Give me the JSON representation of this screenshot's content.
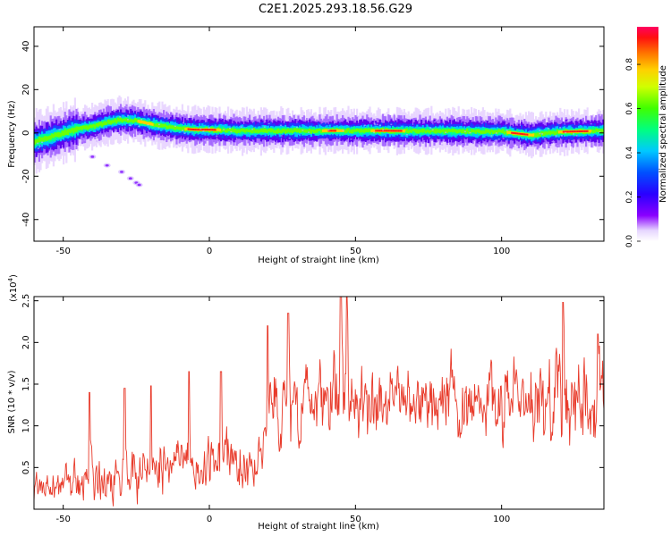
{
  "title": "C2E1.2025.293.18.56.G29",
  "colors": {
    "snr_line": "#e83a2a",
    "axis": "#000000",
    "background": "#ffffff"
  },
  "chart_data": [
    {
      "type": "heatmap",
      "title": "C2E1.2025.293.18.56.G29",
      "xlabel": "Height of straight line (km)",
      "ylabel": "Frequency (Hz)",
      "xlim": [
        -60,
        135
      ],
      "ylim": [
        -50,
        49
      ],
      "xticks": [
        -50,
        0,
        50,
        100
      ],
      "yticks": [
        -40,
        -20,
        0,
        20,
        40
      ],
      "ridge": {
        "x": [
          -60,
          -55,
          -50,
          -45,
          -40,
          -35,
          -30,
          -25,
          -20,
          -15,
          -10,
          -5,
          0,
          10,
          20,
          40,
          60,
          80,
          100,
          110,
          115,
          120,
          135
        ],
        "freq": [
          -4,
          -2,
          0,
          2,
          3,
          5,
          6,
          5.5,
          4,
          3,
          2,
          1.5,
          1.5,
          1,
          1,
          1,
          1,
          0.8,
          0.5,
          -1,
          0,
          0.5,
          1
        ]
      },
      "scatter_tail": {
        "x": [
          -40,
          -35,
          -30,
          -27,
          -25,
          -24
        ],
        "freq": [
          -11,
          -15,
          -18,
          -21,
          -23,
          -24
        ]
      },
      "colorbar": {
        "label": "Normalized spectral amplitude",
        "range": [
          0,
          0.97
        ],
        "ticks": [
          0.0,
          0.2,
          0.4,
          0.6,
          0.8
        ],
        "tick_labels": [
          "0.0",
          "0.2",
          "0.4",
          "0.6",
          "0.8"
        ]
      }
    },
    {
      "type": "line",
      "xlabel": "Height of straight line (km)",
      "ylabel": "SNR (10 * v/v)",
      "exponent_label": "(x10",
      "exponent_power": "4",
      "exponent_close": ")",
      "xlim": [
        -60,
        135
      ],
      "ylim": [
        0,
        2.55
      ],
      "xticks": [
        -50,
        0,
        50,
        100
      ],
      "yticks": [
        0.5,
        1.0,
        1.5,
        2.0,
        2.5
      ],
      "ytick_labels": [
        "0.5",
        "1.0",
        "1.5",
        "2.0",
        "2.5"
      ],
      "envelope": {
        "x": [
          -60,
          -50,
          -40,
          -30,
          -20,
          -10,
          0,
          10,
          18,
          20,
          25,
          30,
          40,
          50,
          60,
          70,
          80,
          90,
          100,
          110,
          120,
          130,
          135
        ],
        "mean": [
          0.25,
          0.3,
          0.38,
          0.45,
          0.5,
          0.55,
          0.55,
          0.55,
          0.6,
          1.3,
          1.1,
          1.35,
          1.45,
          1.35,
          1.3,
          1.3,
          1.3,
          1.3,
          1.25,
          1.2,
          1.3,
          1.3,
          1.2
        ],
        "spread": [
          0.15,
          0.2,
          0.25,
          0.3,
          0.3,
          0.3,
          0.3,
          0.3,
          0.3,
          0.45,
          0.45,
          0.45,
          0.45,
          0.45,
          0.4,
          0.4,
          0.4,
          0.4,
          0.45,
          0.45,
          0.5,
          0.5,
          0.5
        ]
      },
      "peaks": {
        "x": [
          -41,
          -29,
          -20,
          -7,
          4,
          20,
          27,
          45,
          47,
          121,
          133
        ],
        "snr": [
          1.4,
          1.45,
          1.48,
          1.65,
          1.65,
          2.2,
          2.35,
          2.55,
          2.55,
          2.48,
          2.1
        ]
      }
    }
  ],
  "x_tick_labels": [
    "-50",
    "0",
    "50",
    "100"
  ],
  "y1_tick_labels": [
    "-40",
    "-20",
    "0",
    "20",
    "40"
  ]
}
